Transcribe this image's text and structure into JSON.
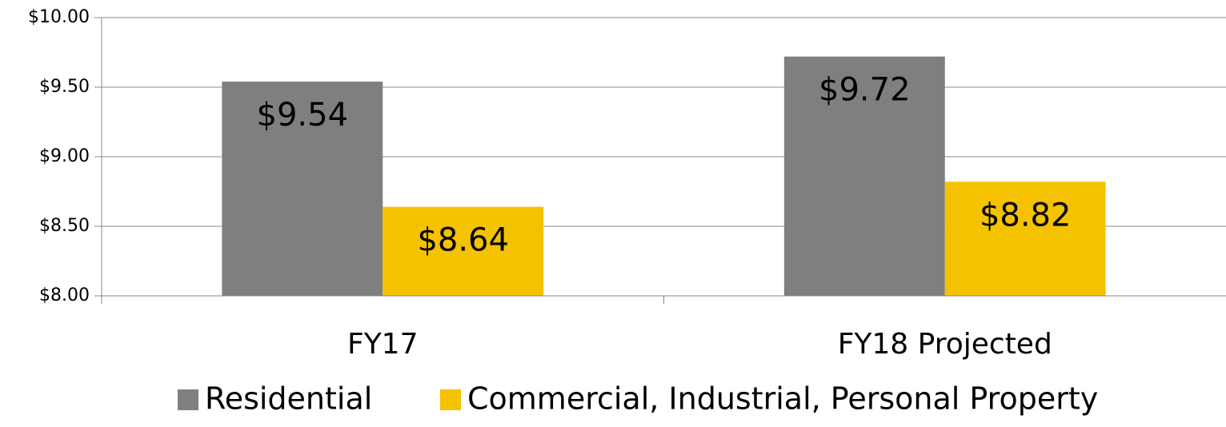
{
  "chart_data": {
    "type": "bar",
    "categories": [
      "FY17",
      "FY18 Projected"
    ],
    "series": [
      {
        "name": "Residential",
        "color": "#7f7f7f",
        "values": [
          9.54,
          9.72
        ],
        "value_labels": [
          "$9.54",
          "$9.72"
        ]
      },
      {
        "name": "Commercial, Industrial, Personal Property",
        "color": "#f5c200",
        "values": [
          8.64,
          8.82
        ],
        "value_labels": [
          "$8.64",
          "$8.82"
        ]
      }
    ],
    "ylim": [
      8,
      10
    ],
    "yticks": [
      {
        "value": 8,
        "label": "$8.00"
      },
      {
        "value": 8.5,
        "label": "$8.50"
      },
      {
        "value": 9,
        "label": "$9.00"
      },
      {
        "value": 9.5,
        "label": "$9.50"
      },
      {
        "value": 10,
        "label": "$10.00"
      }
    ],
    "grid": true,
    "legend": "bottom"
  }
}
